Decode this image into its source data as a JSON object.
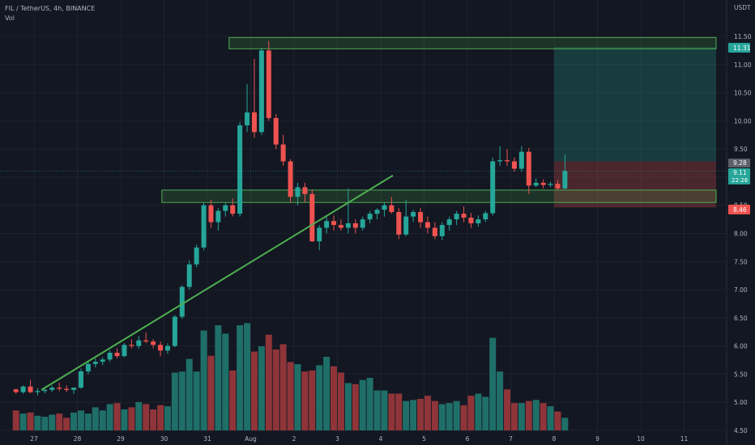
{
  "legend": {
    "symbol": "FIL / TetherUS, 4h, BINANCE",
    "volume": "Vol"
  },
  "price_axis": {
    "currency": "USDT",
    "ticks": [
      "11.50",
      "11.00",
      "10.50",
      "10.00",
      "9.50",
      "9.00",
      "8.50",
      "8.00",
      "7.50",
      "7.00",
      "6.50",
      "6.00",
      "5.50",
      "5.00",
      "4.50"
    ]
  },
  "badges": {
    "target": "11.31",
    "stop": "8.46",
    "current": "9.11",
    "countdown": "22:26",
    "entry": "9.28"
  },
  "time_axis": {
    "ticks": [
      "27",
      "28",
      "29",
      "30",
      "31",
      "Aug",
      "2",
      "3",
      "4",
      "5",
      "6",
      "7",
      "8",
      "9",
      "10",
      "11"
    ]
  },
  "colors": {
    "background": "#131722",
    "up": "#26a69a",
    "down": "#ef5350",
    "up_volume": "#1f6f69",
    "down_volume": "#8f3539",
    "trendline": "#4caf50",
    "zone_border": "#4caf50",
    "profit_zone": "#26a69a",
    "loss_zone": "#ef5350"
  },
  "chart_data": {
    "type": "candlestick",
    "title": "FIL / TetherUS, 4h, BINANCE",
    "ylabel": "USDT",
    "ylim": [
      4.5,
      11.7
    ],
    "x_ticks": [
      "27",
      "28",
      "29",
      "30",
      "31",
      "Aug",
      "2",
      "3",
      "4",
      "5",
      "6",
      "7",
      "8",
      "9",
      "10",
      "11"
    ],
    "candles_per_day": 6,
    "candles": [
      [
        5.23,
        5.24,
        5.15,
        5.18
      ],
      [
        5.18,
        5.3,
        5.15,
        5.28
      ],
      [
        5.28,
        5.4,
        5.16,
        5.18
      ],
      [
        5.18,
        5.25,
        5.12,
        5.2
      ],
      [
        5.2,
        5.28,
        5.16,
        5.22
      ],
      [
        5.22,
        5.3,
        5.18,
        5.26
      ],
      [
        5.26,
        5.35,
        5.2,
        5.24
      ],
      [
        5.24,
        5.3,
        5.18,
        5.22
      ],
      [
        5.22,
        5.25,
        5.15,
        5.26
      ],
      [
        5.26,
        5.6,
        5.24,
        5.55
      ],
      [
        5.55,
        5.72,
        5.5,
        5.68
      ],
      [
        5.68,
        5.78,
        5.62,
        5.72
      ],
      [
        5.72,
        5.8,
        5.66,
        5.76
      ],
      [
        5.76,
        5.92,
        5.72,
        5.88
      ],
      [
        5.88,
        5.96,
        5.78,
        5.82
      ],
      [
        5.82,
        6.05,
        5.8,
        6.02
      ],
      [
        6.02,
        6.12,
        5.96,
        6.0
      ],
      [
        6.0,
        6.18,
        5.95,
        6.1
      ],
      [
        6.1,
        6.24,
        6.05,
        6.08
      ],
      [
        6.08,
        6.12,
        5.96,
        6.02
      ],
      [
        6.02,
        6.08,
        5.82,
        5.92
      ],
      [
        5.92,
        6.05,
        5.86,
        6.0
      ],
      [
        6.0,
        6.55,
        5.98,
        6.52
      ],
      [
        6.52,
        7.08,
        6.48,
        7.05
      ],
      [
        7.05,
        7.52,
        7.0,
        7.45
      ],
      [
        7.45,
        7.8,
        7.4,
        7.75
      ],
      [
        7.75,
        8.55,
        7.7,
        8.5
      ],
      [
        8.5,
        8.6,
        8.1,
        8.2
      ],
      [
        8.2,
        8.45,
        8.05,
        8.4
      ],
      [
        8.4,
        8.55,
        8.3,
        8.5
      ],
      [
        8.5,
        8.62,
        8.3,
        8.35
      ],
      [
        8.35,
        9.98,
        8.3,
        9.92
      ],
      [
        9.92,
        10.65,
        9.8,
        10.15
      ],
      [
        10.15,
        11.1,
        9.7,
        9.8
      ],
      [
        9.8,
        11.3,
        9.75,
        11.25
      ],
      [
        11.25,
        11.42,
        10.0,
        10.05
      ],
      [
        10.05,
        10.12,
        9.5,
        9.58
      ],
      [
        9.58,
        9.75,
        9.2,
        9.28
      ],
      [
        9.28,
        9.32,
        8.55,
        8.65
      ],
      [
        8.65,
        8.9,
        8.5,
        8.82
      ],
      [
        8.82,
        8.9,
        8.55,
        8.7
      ],
      [
        8.7,
        8.78,
        7.85,
        7.86
      ],
      [
        7.86,
        8.15,
        7.7,
        8.1
      ],
      [
        8.1,
        8.3,
        8.0,
        8.22
      ],
      [
        8.22,
        8.32,
        8.05,
        8.15
      ],
      [
        8.15,
        8.25,
        8.05,
        8.1
      ],
      [
        8.1,
        8.8,
        8.0,
        8.18
      ],
      [
        8.18,
        8.25,
        8.0,
        8.1
      ],
      [
        8.1,
        8.3,
        8.05,
        8.25
      ],
      [
        8.25,
        8.4,
        8.18,
        8.35
      ],
      [
        8.35,
        8.45,
        8.25,
        8.42
      ],
      [
        8.42,
        8.55,
        8.3,
        8.5
      ],
      [
        8.5,
        8.65,
        8.35,
        8.38
      ],
      [
        8.38,
        8.45,
        7.9,
        7.98
      ],
      [
        7.98,
        8.6,
        7.95,
        8.3
      ],
      [
        8.3,
        8.42,
        8.2,
        8.38
      ],
      [
        8.38,
        8.45,
        8.1,
        8.2
      ],
      [
        8.2,
        8.3,
        8.0,
        8.1
      ],
      [
        8.1,
        8.2,
        7.9,
        7.95
      ],
      [
        7.95,
        8.2,
        7.88,
        8.15
      ],
      [
        8.15,
        8.3,
        8.05,
        8.25
      ],
      [
        8.25,
        8.4,
        8.15,
        8.35
      ],
      [
        8.35,
        8.48,
        8.2,
        8.28
      ],
      [
        8.28,
        8.36,
        8.1,
        8.18
      ],
      [
        8.18,
        8.32,
        8.12,
        8.25
      ],
      [
        8.25,
        8.4,
        8.2,
        8.36
      ],
      [
        8.36,
        9.35,
        8.32,
        9.28
      ],
      [
        9.28,
        9.55,
        9.2,
        9.3
      ],
      [
        9.3,
        9.5,
        9.2,
        9.28
      ],
      [
        9.28,
        9.35,
        9.1,
        9.15
      ],
      [
        9.15,
        9.55,
        9.1,
        9.45
      ],
      [
        9.45,
        9.52,
        8.7,
        8.85
      ],
      [
        8.85,
        8.98,
        8.82,
        8.9
      ],
      [
        8.9,
        8.96,
        8.8,
        8.86
      ],
      [
        8.86,
        8.92,
        8.82,
        8.88
      ],
      [
        8.88,
        8.95,
        8.78,
        8.8
      ],
      [
        8.8,
        9.4,
        8.78,
        9.11
      ]
    ],
    "volume": [
      0.19,
      0.16,
      0.17,
      0.14,
      0.13,
      0.15,
      0.16,
      0.12,
      0.17,
      0.19,
      0.16,
      0.22,
      0.19,
      0.25,
      0.26,
      0.2,
      0.22,
      0.27,
      0.25,
      0.2,
      0.24,
      0.23,
      0.55,
      0.56,
      0.68,
      0.56,
      0.95,
      0.71,
      1.0,
      0.92,
      0.57,
      1.0,
      1.02,
      0.75,
      0.8,
      0.91,
      0.77,
      0.82,
      0.65,
      0.63,
      0.56,
      0.57,
      0.62,
      0.7,
      0.61,
      0.55,
      0.45,
      0.44,
      0.48,
      0.5,
      0.38,
      0.38,
      0.35,
      0.35,
      0.28,
      0.29,
      0.3,
      0.33,
      0.28,
      0.25,
      0.26,
      0.28,
      0.24,
      0.33,
      0.35,
      0.32,
      0.88,
      0.56,
      0.39,
      0.26,
      0.26,
      0.28,
      0.29,
      0.26,
      0.23,
      0.18,
      0.12
    ],
    "zones": [
      {
        "low": 11.28,
        "high": 11.48
      },
      {
        "low": 8.55,
        "high": 8.77
      }
    ],
    "trendline": [
      [
        5.5,
        5.22
      ],
      [
        13.65,
        9.03
      ]
    ],
    "position": {
      "entry": 9.28,
      "target": 11.31,
      "stop": 8.46
    }
  }
}
